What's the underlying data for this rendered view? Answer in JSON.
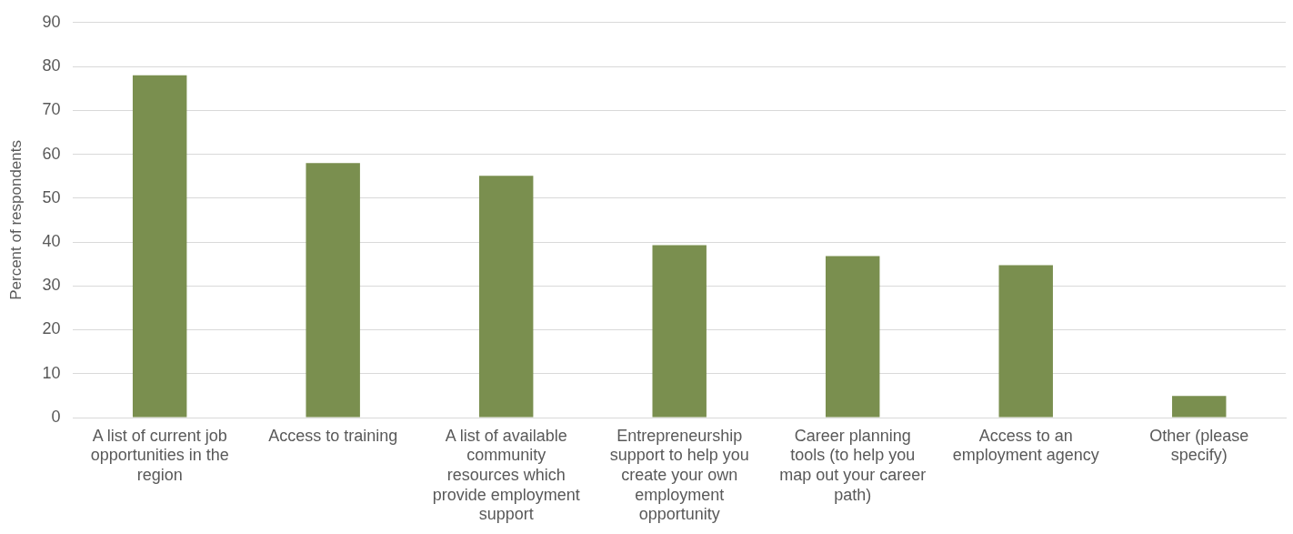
{
  "chart_data": {
    "type": "bar",
    "ylabel": "Percent of respondents",
    "categories": [
      "A list of current job opportunities in the region",
      "Access to training",
      "A list of available community resources which provide employment support",
      "Entrepreneurship support to help you create your own employment opportunity",
      "Career planning tools (to help you map out your career path)",
      "Access to an employment agency",
      "Other (please specify)"
    ],
    "values": [
      78,
      58,
      55.1,
      39.3,
      36.8,
      34.7,
      4.9
    ],
    "color": "#7a8f4f",
    "ylim": [
      0,
      90
    ],
    "yticks": [
      0,
      10,
      20,
      30,
      40,
      50,
      60,
      70,
      80,
      90
    ],
    "grid": "y",
    "legend": false
  }
}
